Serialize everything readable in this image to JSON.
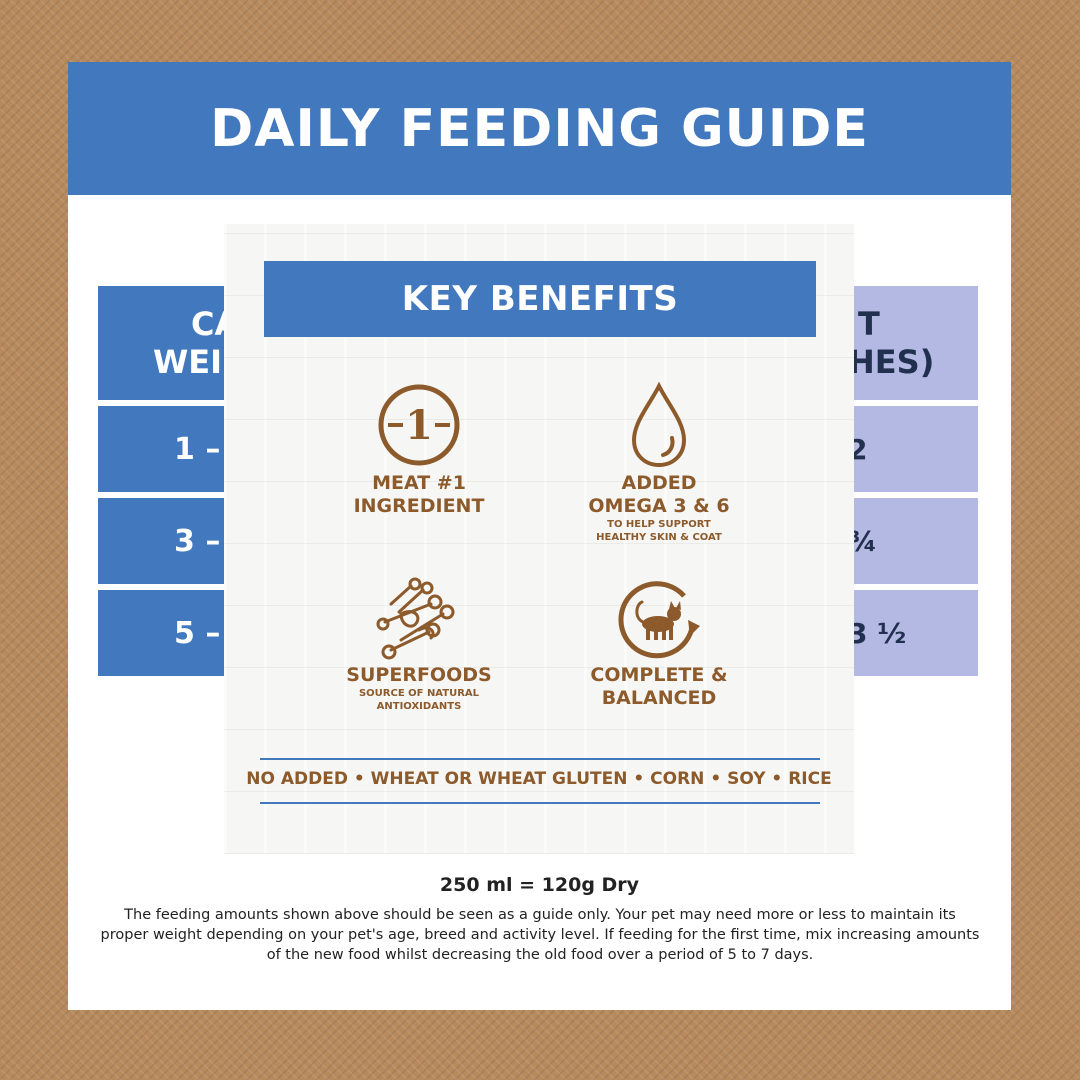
{
  "guide": {
    "title": "DAILY FEEDING GUIDE",
    "table": {
      "header_left": [
        "CA",
        "WEI"
      ],
      "header_right": [
        "T",
        "HES)"
      ],
      "rows": [
        {
          "left": "1 – ",
          "right": "2"
        },
        {
          "left": "3 – ",
          "right": "¾"
        },
        {
          "left": "5 – ",
          "right": "3 ½"
        }
      ]
    },
    "footer_size": "250 ml = 120g Dry",
    "footer_note": "The feeding amounts shown above should be seen as a guide only. Your pet may need more or less to maintain its proper weight depending on your pet's age, breed and activity level. If feeding for the first time, mix increasing amounts of the new food whilst decreasing the old food over a period of 5 to 7 days."
  },
  "benefits": {
    "title": "KEY BENEFITS",
    "items": [
      {
        "icon": "number-one-badge-icon",
        "title_lines": [
          "MEAT #1",
          "INGREDIENT"
        ],
        "subtitle_lines": []
      },
      {
        "icon": "oil-drop-icon",
        "title_lines": [
          "ADDED",
          "OMEGA 3 & 6"
        ],
        "subtitle_lines": [
          "TO HELP SUPPORT",
          "HEALTHY SKIN & COAT"
        ]
      },
      {
        "icon": "superfoods-icon",
        "title_lines": [
          "SUPERFOODS"
        ],
        "subtitle_lines": [
          "SOURCE OF NATURAL",
          "ANTIOXIDANTS"
        ]
      },
      {
        "icon": "cat-cycle-icon",
        "title_lines": [
          "COMPLETE &",
          "BALANCED"
        ],
        "subtitle_lines": []
      }
    ],
    "one_label": "1",
    "no_added": "NO ADDED • WHEAT OR WHEAT GLUTEN • CORN • SOY • RICE"
  },
  "colors": {
    "background": "#b78a5e",
    "brand_blue": "#4278be",
    "lavender": "#b3b9e2",
    "brown": "#8c5a2b"
  }
}
